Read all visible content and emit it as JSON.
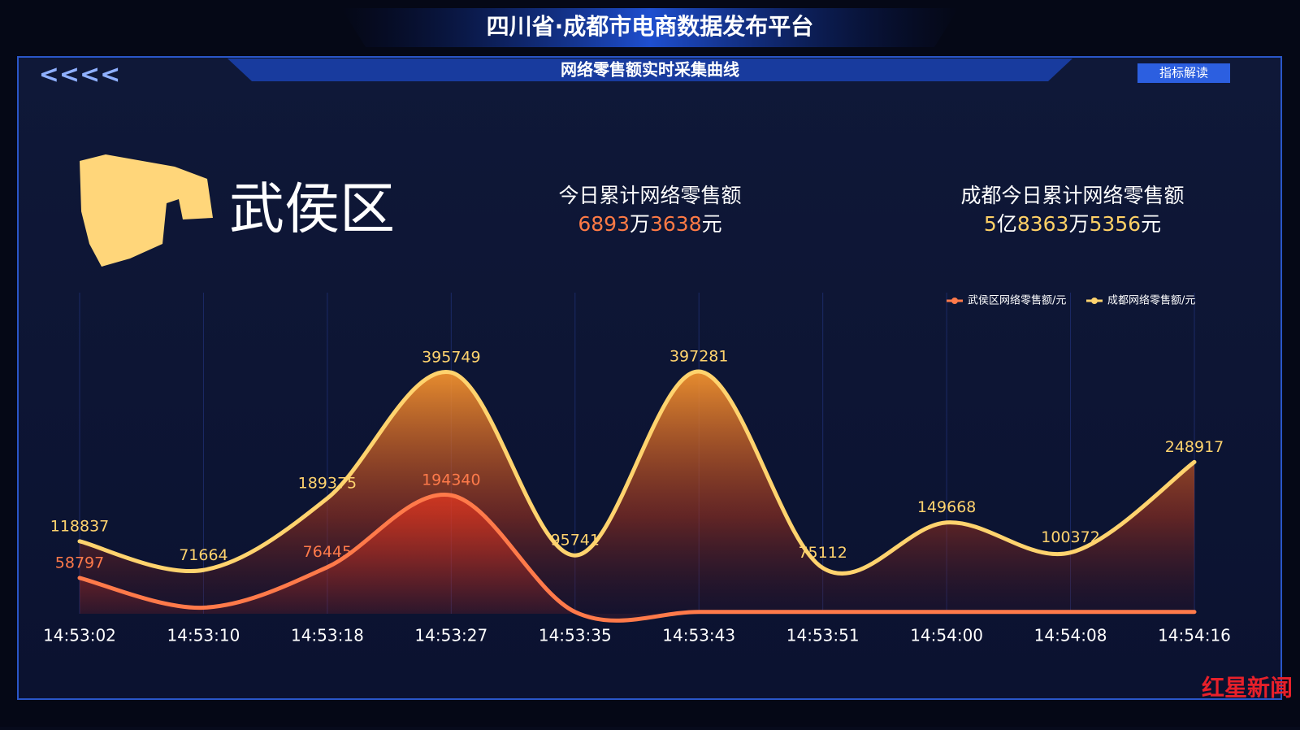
{
  "header": {
    "title": "四川省·成都市电商数据发布平台",
    "subtitle": "网络零售额实时采集曲线",
    "back": "<<<<",
    "button": "指标解读"
  },
  "district": "武侯区",
  "stats": [
    {
      "label": "今日累计网络零售额",
      "parts": [
        "6893",
        "万",
        "3638",
        "元"
      ]
    },
    {
      "label": "成都今日累计网络零售额",
      "parts": [
        "5",
        "亿",
        "8363",
        "万",
        "5356",
        "元"
      ]
    }
  ],
  "watermark": "红星新闻",
  "chart_data": {
    "type": "line",
    "smooth": true,
    "categories": [
      "14:53:02",
      "14:53:10",
      "14:53:18",
      "14:53:27",
      "14:53:35",
      "14:53:43",
      "14:53:51",
      "14:54:00",
      "14:54:08",
      "14:54:16"
    ],
    "series": [
      {
        "name": "武侯区网络零售额/元",
        "color": "#ff7a4a",
        "area": false,
        "values": [
          58797,
          10000,
          76445,
          194340,
          3000,
          3000,
          3000,
          3000,
          3000,
          3000
        ],
        "value_labels": [
          "58797",
          null,
          "76445",
          "194340",
          null,
          null,
          null,
          null,
          null,
          null
        ]
      },
      {
        "name": "成都网络零售额/元",
        "color": "#ffd36e",
        "area": true,
        "values": [
          118837,
          71664,
          189375,
          395749,
          95741,
          397281,
          75112,
          149668,
          100372,
          248917
        ],
        "value_labels": [
          "118837",
          "71664",
          "189375",
          "395749",
          "95741",
          "397281",
          "75112",
          "149668",
          "100372",
          "248917"
        ]
      }
    ],
    "ylim": [
      0,
      420000
    ],
    "legend": "top-right",
    "grid": true
  }
}
